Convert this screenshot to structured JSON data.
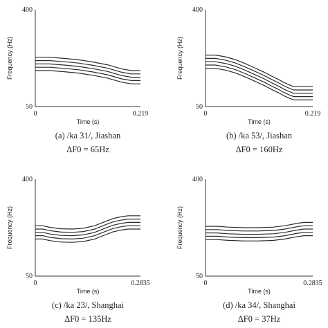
{
  "chart_data": [
    {
      "type": "line",
      "caption": "(a) /ka 31/, Jiashan",
      "delta": "ΔF0 = 65Hz",
      "xlabel": "Time (s)",
      "ylabel": "Frequency (Hz)",
      "xlim": [
        0,
        0.219
      ],
      "ylim": [
        50,
        400
      ],
      "xticks": [
        "0",
        "0.219"
      ],
      "yticks": [
        "50",
        "400"
      ],
      "x": [
        0,
        0.03,
        0.06,
        0.09,
        0.12,
        0.15,
        0.18,
        0.2,
        0.219
      ],
      "series": [
        {
          "values": [
            228,
            228,
            224,
            219,
            211,
            201,
            186,
            180,
            180
          ]
        },
        {
          "values": [
            216,
            216,
            212,
            207,
            199,
            189,
            174,
            168,
            168
          ]
        },
        {
          "values": [
            204,
            204,
            200,
            195,
            187,
            177,
            162,
            156,
            156
          ]
        },
        {
          "values": [
            192,
            192,
            188,
            183,
            175,
            165,
            150,
            144,
            144
          ]
        },
        {
          "values": [
            180,
            180,
            176,
            171,
            163,
            153,
            138,
            132,
            132
          ]
        }
      ]
    },
    {
      "type": "line",
      "caption": "(b) /ka 53/, Jiashan",
      "delta": "ΔF0 = 160Hz",
      "xlabel": "Time (s)",
      "ylabel": "Frequency (Hz)",
      "xlim": [
        0,
        0.219
      ],
      "ylim": [
        50,
        400
      ],
      "xticks": [
        "0",
        "0.219"
      ],
      "yticks": [
        "50",
        "400"
      ],
      "x": [
        0,
        0.02,
        0.04,
        0.06,
        0.08,
        0.1,
        0.12,
        0.135,
        0.15,
        0.16,
        0.17,
        0.18,
        0.2,
        0.219
      ],
      "series": [
        {
          "values": [
            236,
            236,
            230,
            220,
            206,
            190,
            174,
            160,
            147,
            137,
            129,
            122,
            122,
            122
          ]
        },
        {
          "values": [
            224,
            224,
            218,
            208,
            194,
            178,
            162,
            148,
            135,
            125,
            117,
            110,
            110,
            110
          ]
        },
        {
          "values": [
            212,
            212,
            206,
            196,
            182,
            166,
            150,
            136,
            123,
            113,
            105,
            98,
            98,
            98
          ]
        },
        {
          "values": [
            200,
            200,
            194,
            184,
            170,
            154,
            138,
            124,
            111,
            101,
            93,
            86,
            86,
            86
          ]
        },
        {
          "values": [
            188,
            188,
            182,
            172,
            158,
            142,
            126,
            112,
            99,
            89,
            81,
            74,
            74,
            74
          ]
        }
      ]
    },
    {
      "type": "line",
      "caption": "(c) /ka 23/, Shanghai",
      "delta": "ΔF0 = 135Hz",
      "xlabel": "Time (s)",
      "ylabel": "Frequency (Hz)",
      "xlim": [
        0,
        0.2835
      ],
      "ylim": [
        50,
        400
      ],
      "xticks": [
        "0",
        "0.2835"
      ],
      "yticks": [
        "50",
        "400"
      ],
      "x": [
        0,
        0.02,
        0.04,
        0.07,
        0.1,
        0.13,
        0.16,
        0.19,
        0.21,
        0.23,
        0.25,
        0.2835
      ],
      "series": [
        {
          "values": [
            232,
            232,
            226,
            221,
            220,
            223,
            232,
            248,
            258,
            264,
            268,
            268
          ]
        },
        {
          "values": [
            220,
            220,
            214,
            209,
            208,
            211,
            220,
            236,
            246,
            252,
            256,
            256
          ]
        },
        {
          "values": [
            208,
            208,
            202,
            197,
            196,
            199,
            208,
            224,
            234,
            240,
            244,
            244
          ]
        },
        {
          "values": [
            196,
            196,
            190,
            185,
            184,
            187,
            196,
            212,
            222,
            228,
            232,
            232
          ]
        },
        {
          "values": [
            184,
            184,
            178,
            173,
            172,
            175,
            184,
            200,
            210,
            216,
            220,
            220
          ]
        }
      ]
    },
    {
      "type": "line",
      "caption": "(d) /ka 34/, Shanghai",
      "delta": "ΔF0 = 37Hz",
      "xlabel": "Time (s)",
      "ylabel": "Frequency (Hz)",
      "xlim": [
        0,
        0.2835
      ],
      "ylim": [
        50,
        400
      ],
      "xticks": [
        "0",
        "0.2835"
      ],
      "yticks": [
        "50",
        "400"
      ],
      "x": [
        0,
        0.03,
        0.06,
        0.1,
        0.14,
        0.18,
        0.21,
        0.24,
        0.26,
        0.2835
      ],
      "series": [
        {
          "values": [
            230,
            230,
            227,
            225,
            225,
            227,
            232,
            240,
            244,
            244
          ]
        },
        {
          "values": [
            218,
            218,
            215,
            213,
            213,
            215,
            220,
            228,
            232,
            232
          ]
        },
        {
          "values": [
            206,
            206,
            203,
            201,
            201,
            203,
            208,
            216,
            220,
            220
          ]
        },
        {
          "values": [
            194,
            194,
            191,
            189,
            189,
            191,
            196,
            204,
            208,
            208
          ]
        },
        {
          "values": [
            182,
            182,
            179,
            177,
            177,
            179,
            184,
            192,
            196,
            196
          ]
        }
      ]
    }
  ]
}
